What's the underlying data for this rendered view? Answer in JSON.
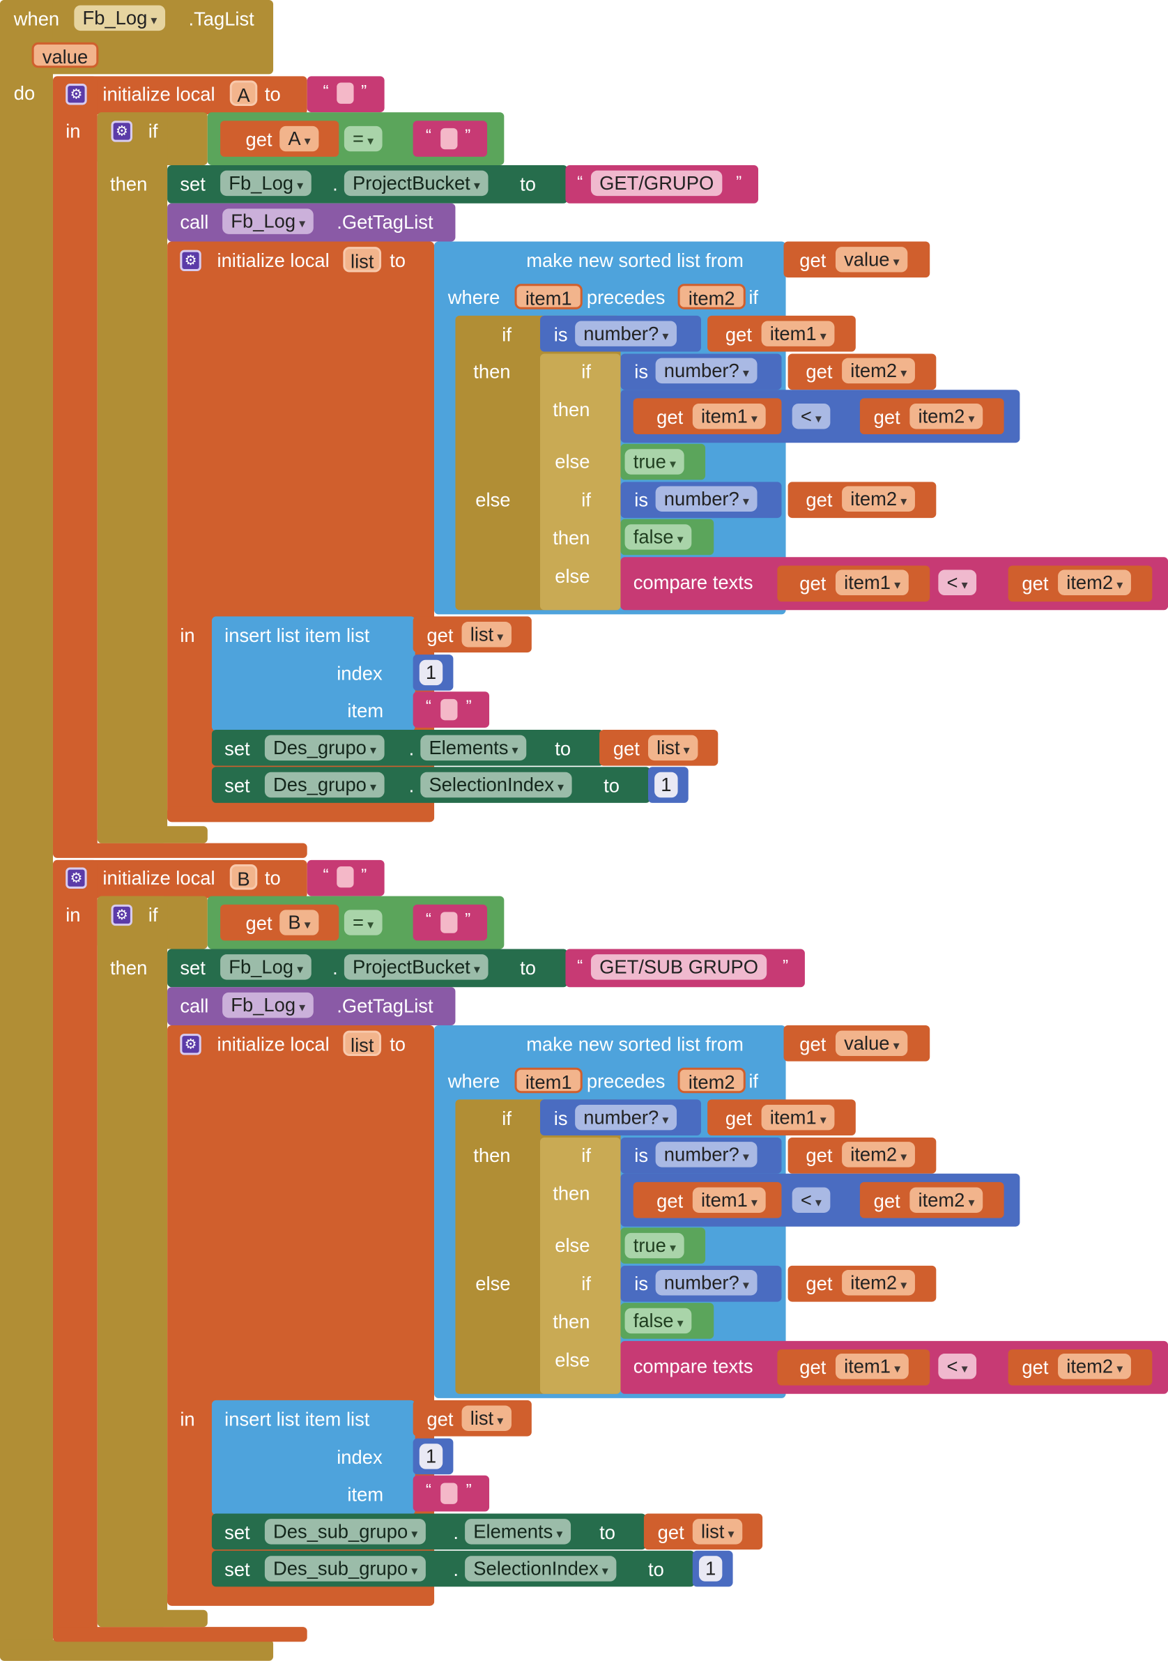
{
  "event": {
    "when": "when",
    "component": "Fb_Log",
    "event_name": ".TagList",
    "param": "value",
    "do": "do"
  },
  "kw": {
    "initialize_local": "initialize local",
    "to": "to",
    "in": "in",
    "if": "if",
    "then": "then",
    "else": "else",
    "get": "get",
    "set": "set",
    "call": "call",
    "dot": ".",
    "eq": "=",
    "lt": "<",
    "where": "where",
    "precedes": "precedes",
    "make_sorted": "make new sorted list from",
    "is": "is",
    "is_number": "number?",
    "true": "true",
    "false": "false",
    "compare_texts": "compare texts",
    "insert_list_item": "insert list item  list",
    "index": "index",
    "item": "item",
    "open_quote": "“",
    "close_quote": "”"
  },
  "vars": {
    "a": "A",
    "b": "B",
    "list": "list",
    "value": "value",
    "item1": "item1",
    "item2": "item2"
  },
  "components": {
    "fb_log": "Fb_Log",
    "des_grupo": "Des_grupo",
    "des_sub_grupo": "Des_sub_grupo"
  },
  "properties": {
    "project_bucket": "ProjectBucket",
    "elements": "Elements",
    "selection_index": "SelectionIndex",
    "get_tag_list": ".GetTagList"
  },
  "strings": {
    "grupo": "GET/GRUPO",
    "sub_grupo": "GET/SUB GRUPO"
  },
  "numbers": {
    "one": "1"
  }
}
